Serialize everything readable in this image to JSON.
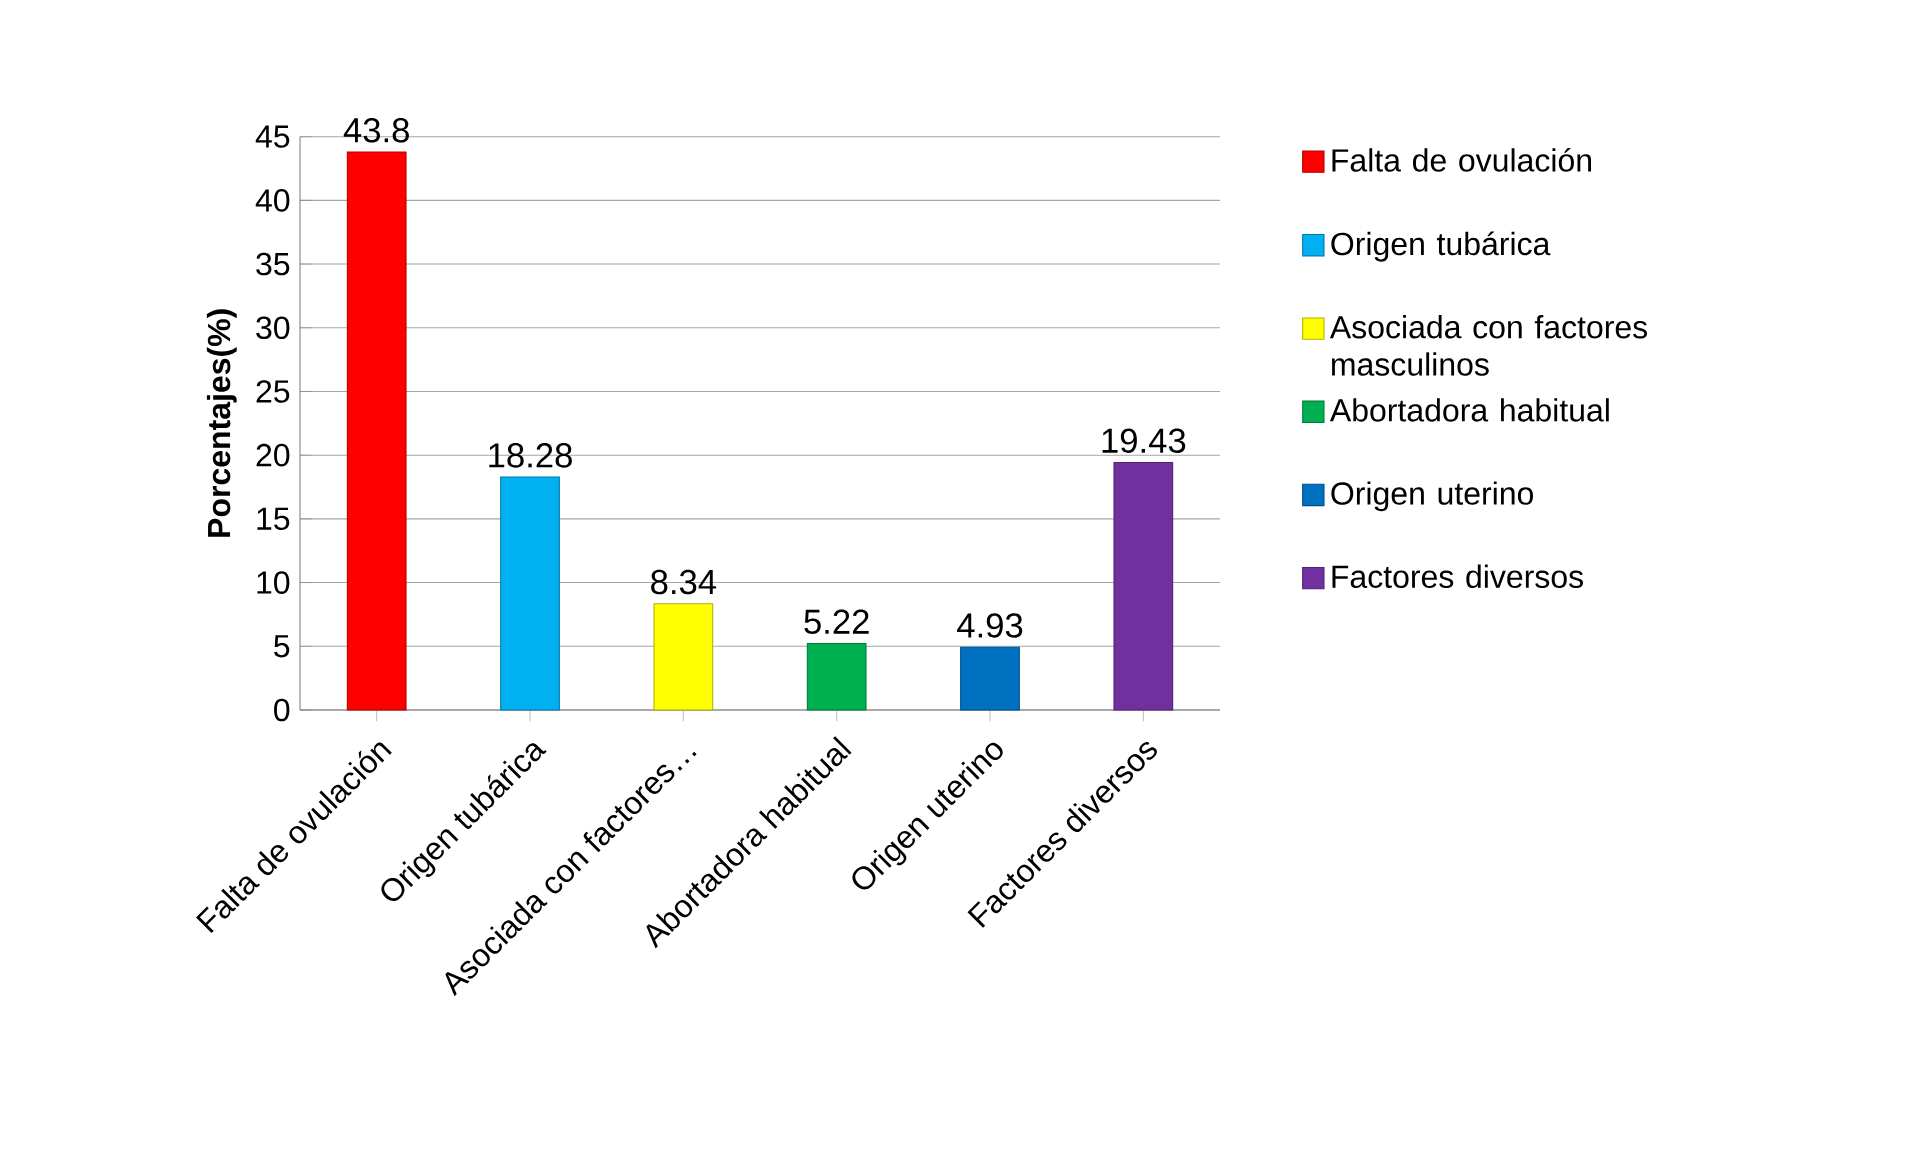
{
  "chart_data": {
    "type": "bar",
    "ylabel": "Porcentajes(%)",
    "categories": [
      "Falta de ovulación",
      "Origen tubárica",
      "Asociada con factores…",
      "Abortadora habitual",
      "Origen uterino",
      "Factores diversos"
    ],
    "series": [
      {
        "name": "Falta de ovulación",
        "color": "#ff0000",
        "values": [
          43.8,
          null,
          null,
          null,
          null,
          null
        ]
      },
      {
        "name": "Origen tubárica",
        "color": "#00b0f0",
        "values": [
          null,
          18.28,
          null,
          null,
          null,
          null
        ]
      },
      {
        "name": "Asociada con factores masculinos",
        "color": "#ffff00",
        "values": [
          null,
          null,
          8.34,
          null,
          null,
          null
        ]
      },
      {
        "name": "Abortadora habitual",
        "color": "#00b050",
        "values": [
          null,
          null,
          null,
          5.22,
          null,
          null
        ]
      },
      {
        "name": "Origen uterino",
        "color": "#0070c0",
        "values": [
          null,
          null,
          null,
          null,
          4.93,
          null
        ]
      },
      {
        "name": "Factores diversos",
        "color": "#7030a0",
        "values": [
          null,
          null,
          null,
          null,
          null,
          19.43
        ]
      }
    ],
    "ylim": [
      0,
      45
    ],
    "yticks": [
      0,
      5,
      10,
      15,
      20,
      25,
      30,
      35,
      40,
      45
    ],
    "grid": "y",
    "legend": "right",
    "data_labels": true
  }
}
